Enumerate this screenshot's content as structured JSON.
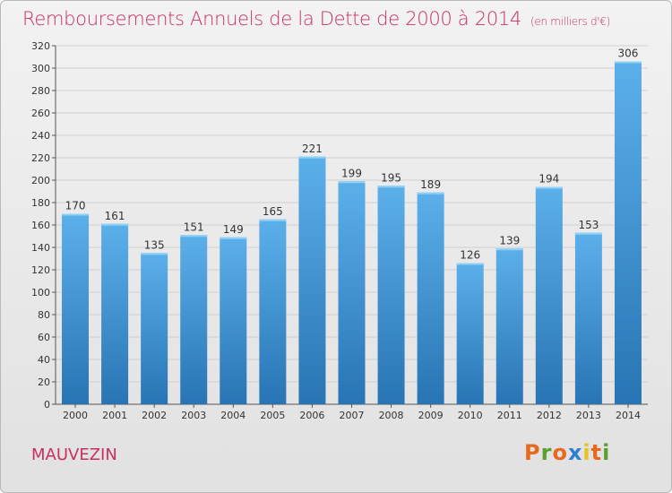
{
  "header": {
    "title": "Remboursements Annuels de la Dette de 2000 à 2014",
    "unit": "(en milliers d'€)"
  },
  "footer": {
    "place": "MAUVEZIN",
    "brand_letters": [
      "P",
      "r",
      "o",
      "x",
      "i",
      "t",
      "i"
    ],
    "brand_colors": [
      "#e8681e",
      "#5aa02c",
      "#e8681e",
      "#2f7fd0",
      "#e8c21e",
      "#e8681e",
      "#5aa02c"
    ]
  },
  "colors": {
    "accent": "#c8305e",
    "bar_top": "#5cb0ea",
    "bar_bottom": "#2874b4",
    "grid": "#cfcfcf"
  },
  "chart_data": {
    "type": "bar",
    "title": "Remboursements Annuels de la Dette de 2000 à 2014",
    "subtitle": "(en milliers d'€)",
    "xlabel": "",
    "ylabel": "",
    "categories": [
      "2000",
      "2001",
      "2002",
      "2003",
      "2004",
      "2005",
      "2006",
      "2007",
      "2008",
      "2009",
      "2010",
      "2011",
      "2012",
      "2013",
      "2014"
    ],
    "values": [
      170,
      161,
      135,
      151,
      149,
      165,
      221,
      199,
      195,
      189,
      126,
      139,
      194,
      153,
      306
    ],
    "ylim": [
      0,
      320
    ],
    "yticks": [
      0,
      20,
      40,
      60,
      80,
      100,
      120,
      140,
      160,
      180,
      200,
      220,
      240,
      260,
      280,
      300,
      320
    ],
    "grid": true,
    "legend": "none"
  }
}
